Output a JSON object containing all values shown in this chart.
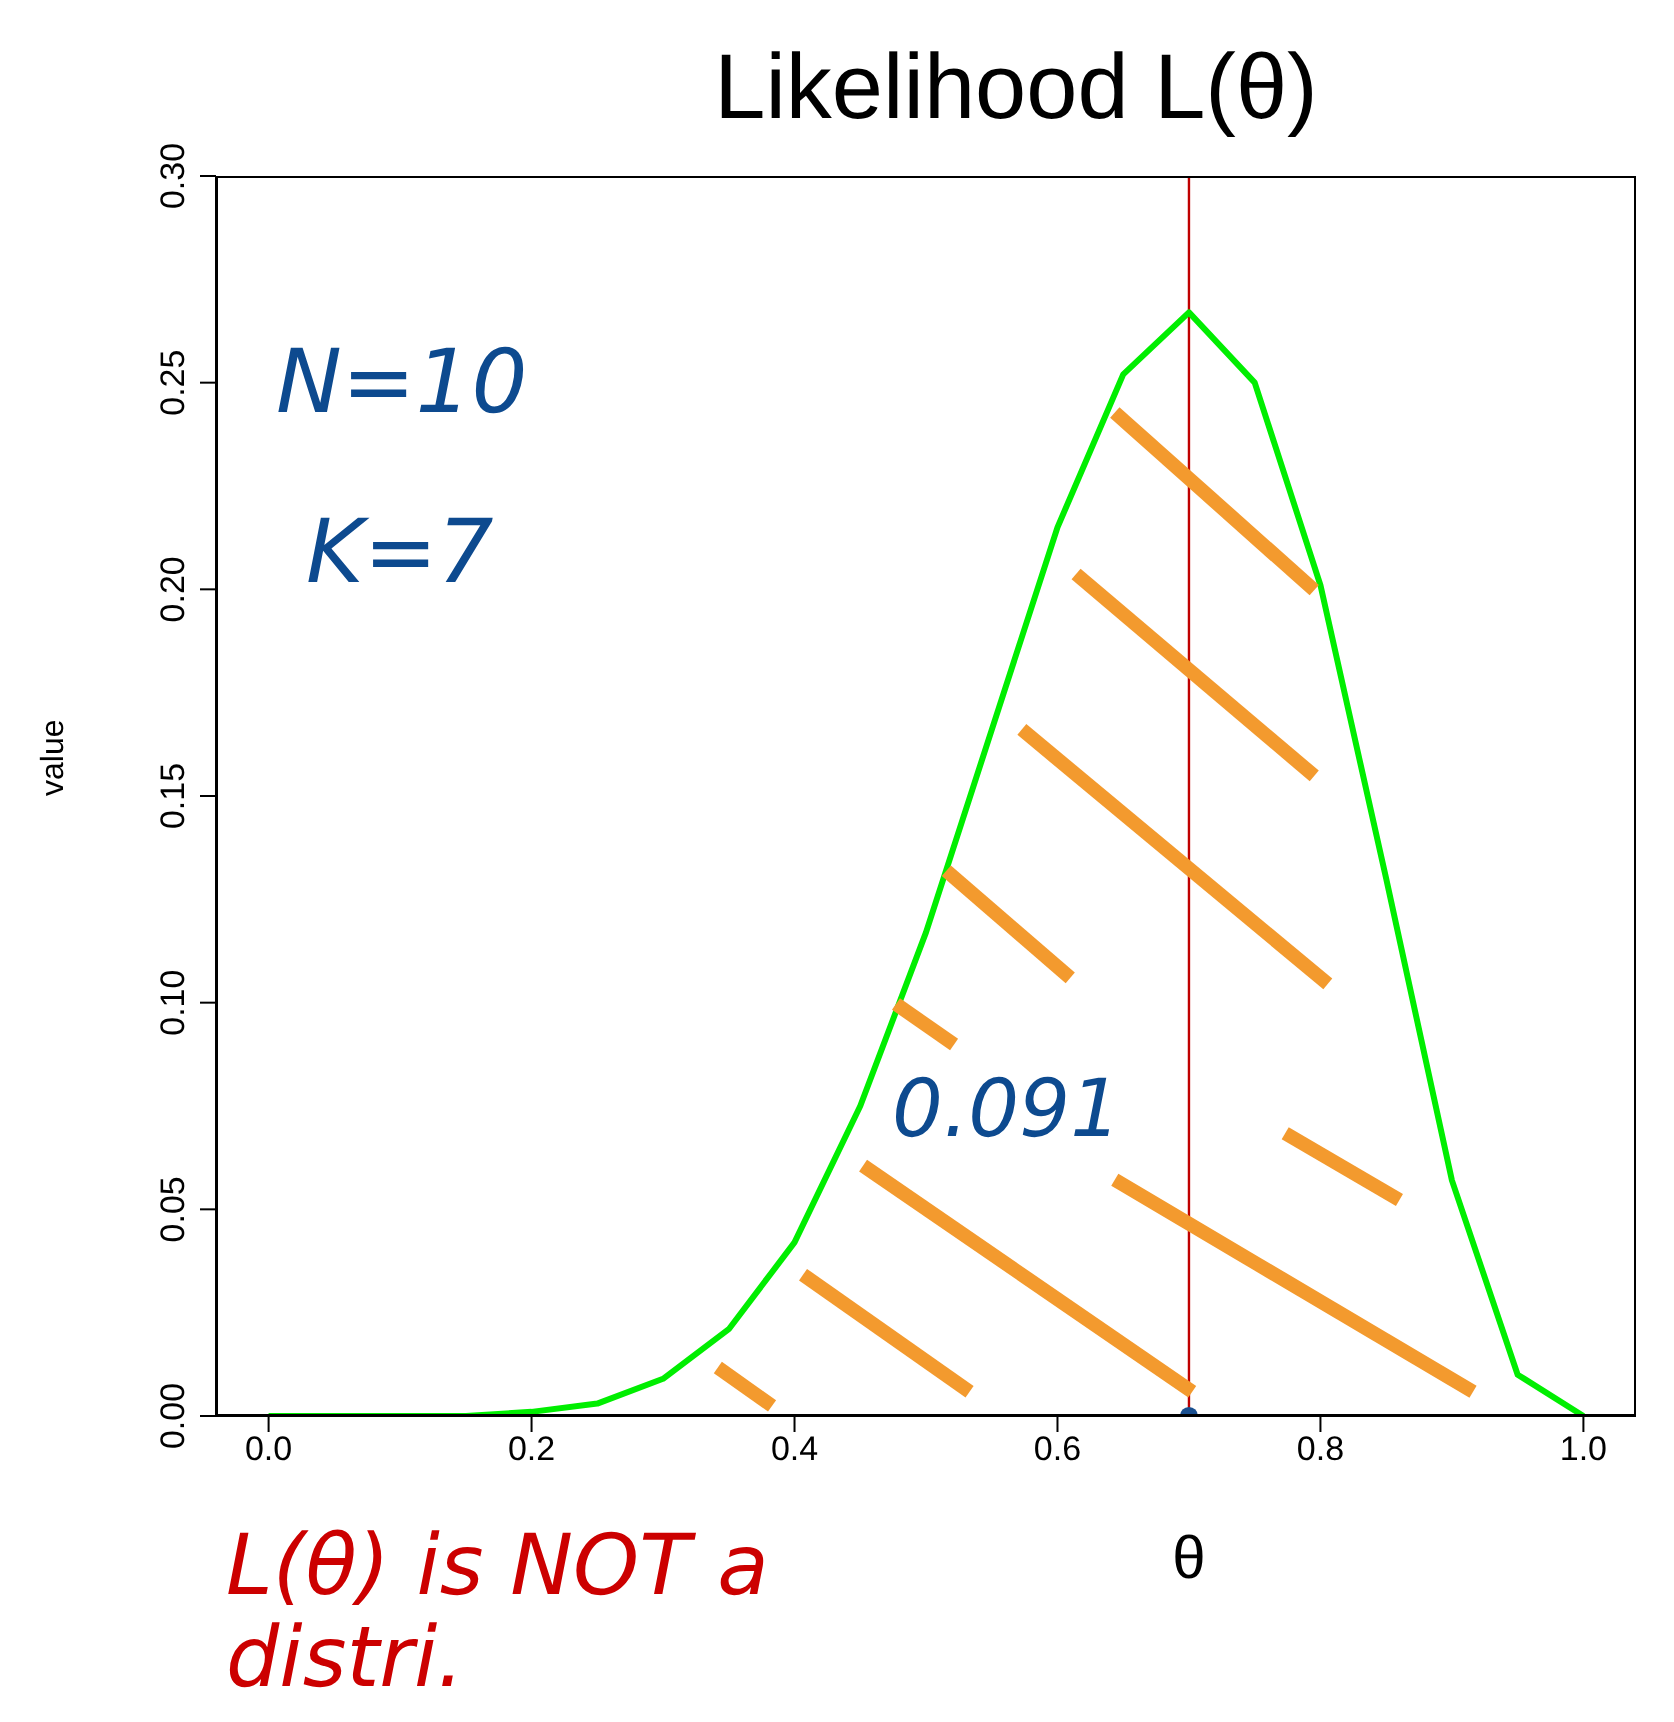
{
  "chart_data": {
    "type": "line",
    "title": "Likelihood L(θ)",
    "xlabel": "θ",
    "ylabel": "value",
    "xlim": [
      -0.04,
      1.04
    ],
    "ylim": [
      0,
      0.3
    ],
    "xticks": [
      {
        "value": 0,
        "label": "0.0"
      },
      {
        "value": 0.2,
        "label": "0.2"
      },
      {
        "value": 0.4,
        "label": "0.4"
      },
      {
        "value": 0.6,
        "label": "0.6"
      },
      {
        "value": 0.8,
        "label": "0.8"
      },
      {
        "value": 1,
        "label": "1.0"
      }
    ],
    "yticks": [
      {
        "value": 0,
        "label": "0.00"
      },
      {
        "value": 0.05,
        "label": "0.05"
      },
      {
        "value": 0.1,
        "label": "0.10"
      },
      {
        "value": 0.15,
        "label": "0.15"
      },
      {
        "value": 0.2,
        "label": "0.20"
      },
      {
        "value": 0.25,
        "label": "0.25"
      },
      {
        "value": 0.3,
        "label": "0.30"
      }
    ],
    "series": [
      {
        "color": "#00ee00",
        "marker": "none",
        "x": [
          0,
          0.05,
          0.1,
          0.15,
          0.2,
          0.25,
          0.3,
          0.35,
          0.4,
          0.45,
          0.5,
          0.55,
          0.6,
          0.65,
          0.7,
          0.75,
          0.8,
          0.85,
          0.9,
          0.95,
          1
        ],
        "values": [
          0,
          0,
          0,
          0,
          0.001,
          0.003,
          0.009,
          0.021,
          0.042,
          0.075,
          0.117,
          0.166,
          0.215,
          0.252,
          0.267,
          0.25,
          0.201,
          0.13,
          0.057,
          0.01,
          0
        ]
      },
      {
        "type": "scatter",
        "color": "#1a4f8f",
        "marker": "circle",
        "x": [
          0.7
        ],
        "values": [
          0
        ]
      }
    ],
    "ref_lines": [
      {
        "axis": "x",
        "value": 0.7,
        "color": "#c00000"
      }
    ],
    "annotations": [
      "N=10",
      "K=7",
      "0.091",
      "L(θ) is NOT a distri."
    ]
  }
}
